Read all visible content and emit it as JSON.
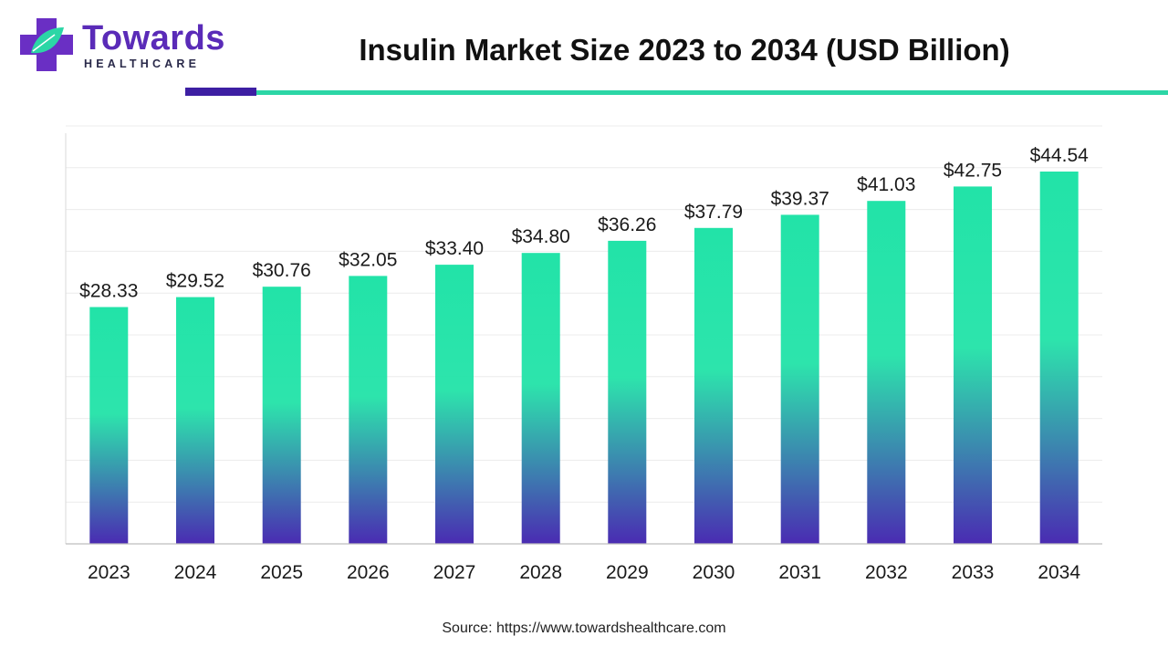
{
  "brand": {
    "name": "Towards",
    "subtitle": "HEALTHCARE",
    "colors": {
      "primary": "#5a2bb8",
      "accent": "#2cd6a6",
      "dark": "#3d1fa3"
    }
  },
  "source": "Source: https://www.towardshealthcare.com",
  "chart_data": {
    "type": "bar",
    "title": "Insulin Market Size 2023 to 2034 (USD Billion)",
    "xlabel": "",
    "ylabel": "",
    "categories": [
      "2023",
      "2024",
      "2025",
      "2026",
      "2027",
      "2028",
      "2029",
      "2030",
      "2031",
      "2032",
      "2033",
      "2034"
    ],
    "values": [
      28.33,
      29.52,
      30.76,
      32.05,
      33.4,
      34.8,
      36.26,
      37.79,
      39.37,
      41.03,
      42.75,
      44.54
    ],
    "value_labels": [
      "$28.33",
      "$29.52",
      "$30.76",
      "$32.05",
      "$33.40",
      "$34.80",
      "$36.26",
      "$37.79",
      "$39.37",
      "$41.03",
      "$42.75",
      "$44.54"
    ],
    "ylim": [
      0,
      50
    ],
    "grid": true,
    "legend": "none",
    "bar_gradient": {
      "top": "#22e3a8",
      "bottom": "#4a2bb2"
    }
  }
}
